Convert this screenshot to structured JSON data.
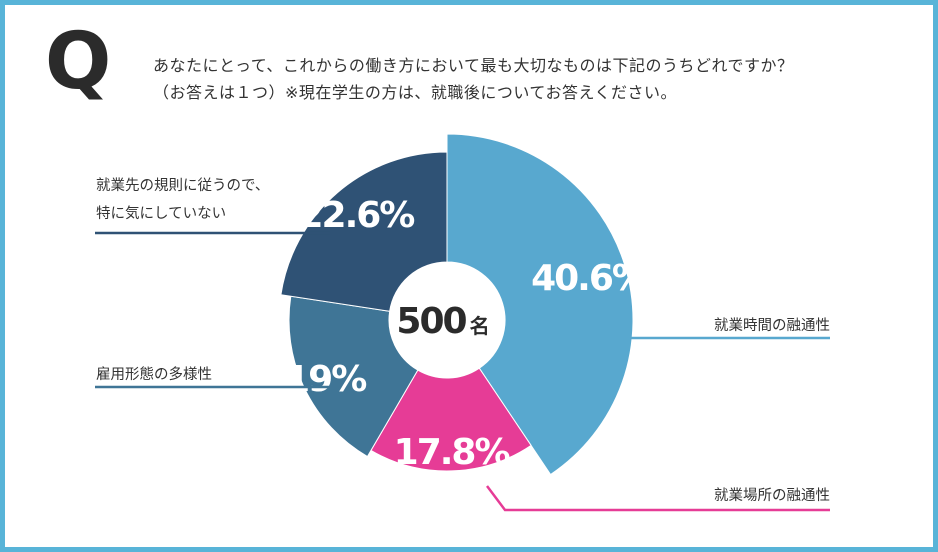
{
  "question": {
    "mark": "Q",
    "line1": "あなたにとって、これからの働き方において最も大切なものは下記のうちどれですか？",
    "line2": "（お答えは１つ）※現在学生の方は、就職後についてお答えください。"
  },
  "chart_data": {
    "type": "pie",
    "center_value": "500",
    "center_unit": "名",
    "slices": [
      {
        "label": "就業時間の融通性",
        "label_lines": [
          "就業時間の融通性"
        ],
        "value": 40.6,
        "display": "40.6%",
        "color": "#58a8cf"
      },
      {
        "label": "就業場所の融通性",
        "label_lines": [
          "就業場所の融通性"
        ],
        "value": 17.8,
        "display": "17.8%",
        "color": "#e63c96"
      },
      {
        "label": "雇用形態の多様性",
        "label_lines": [
          "雇用形態の多様性"
        ],
        "value": 19,
        "display": "19%",
        "color": "#3f7596"
      },
      {
        "label": "就業先の規則に従うので、特に気にしていない",
        "label_lines": [
          "就業先の規則に従うので、",
          "特に気にしていない"
        ],
        "value": 22.6,
        "display": "22.6%",
        "color": "#2f5275"
      }
    ]
  }
}
